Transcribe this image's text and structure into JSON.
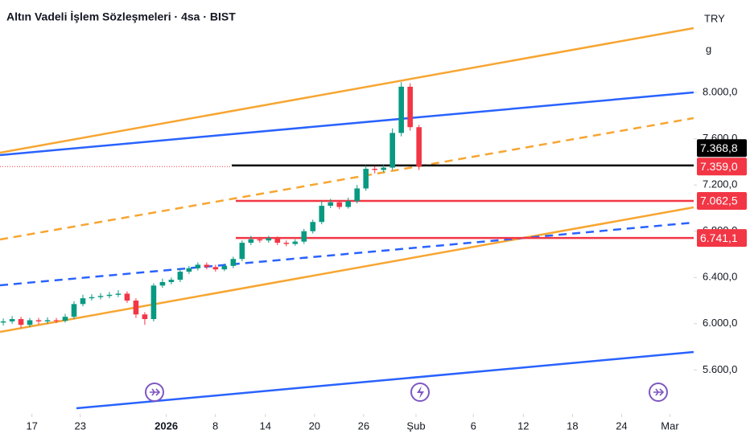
{
  "chart_data": {
    "type": "candlestick",
    "title": "Altın Vadeli İşlem Sözleşmeleri · 4sa · BIST",
    "currency": "TRY",
    "unit": "g",
    "x": [
      -3.5,
      -2.42,
      -1.34,
      -0.26,
      0.82,
      1.9,
      2.98,
      4.06,
      5.14,
      6.22,
      7.3,
      8.38,
      9.46,
      10.54,
      11.62,
      12.7,
      13.78,
      14.86,
      15.94,
      17.02,
      18.1,
      19.18,
      20.26,
      21.34,
      22.42,
      23.5,
      24.58,
      25.66,
      26.74,
      27.82,
      28.9,
      29.98,
      31.06,
      32.14,
      33.22,
      34.3,
      35.38,
      36.46,
      37.54,
      38.62,
      39.7,
      40.78,
      41.86,
      42.94,
      44.02,
      45.1,
      46.18,
      47.26
    ],
    "open": [
      6010,
      6020,
      6040,
      5990,
      6030,
      6020,
      6030,
      6025,
      6060,
      6170,
      6220,
      6230,
      6240,
      6250,
      6260,
      6200,
      6080,
      6040,
      6330,
      6360,
      6380,
      6450,
      6480,
      6510,
      6490,
      6470,
      6500,
      6560,
      6700,
      6730,
      6720,
      6740,
      6700,
      6690,
      6710,
      6800,
      6880,
      7020,
      7050,
      7010,
      7060,
      7170,
      7340,
      7330,
      7350,
      7650,
      8050,
      7700
    ],
    "high": [
      6045,
      6065,
      6060,
      6050,
      6050,
      6055,
      6050,
      6085,
      6195,
      6250,
      6255,
      6265,
      6275,
      6290,
      6280,
      6220,
      6100,
      6350,
      6390,
      6400,
      6475,
      6500,
      6530,
      6530,
      6510,
      6520,
      6580,
      6720,
      6760,
      6750,
      6760,
      6755,
      6720,
      6730,
      6820,
      6900,
      7060,
      7080,
      7065,
      7090,
      7200,
      7370,
      7360,
      7380,
      7690,
      8090,
      8080,
      7720
    ],
    "low": [
      5985,
      6000,
      5960,
      5970,
      5995,
      6000,
      6005,
      6010,
      6040,
      6150,
      6200,
      6210,
      6220,
      6230,
      6180,
      6050,
      5990,
      6020,
      6310,
      6340,
      6360,
      6430,
      6460,
      6470,
      6450,
      6455,
      6480,
      6540,
      6680,
      6700,
      6700,
      6680,
      6670,
      6675,
      6690,
      6780,
      6860,
      7000,
      6990,
      6995,
      7040,
      7150,
      7300,
      7310,
      7330,
      7620,
      7670,
      7330
    ],
    "close": [
      6020,
      6040,
      5990,
      6030,
      6020,
      6030,
      6025,
      6060,
      6170,
      6220,
      6230,
      6240,
      6250,
      6260,
      6200,
      6080,
      6040,
      6330,
      6360,
      6380,
      6450,
      6480,
      6510,
      6490,
      6470,
      6500,
      6560,
      6700,
      6730,
      6720,
      6740,
      6700,
      6690,
      6710,
      6800,
      6880,
      7020,
      7050,
      7010,
      7060,
      7170,
      7340,
      7330,
      7350,
      7650,
      8050,
      7700,
      7359
    ],
    "up_color": "#089981",
    "down_color": "#f23645",
    "xlim": [
      -3.9,
      80.8
    ],
    "xticks": [
      {
        "value": 0,
        "label": "17"
      },
      {
        "value": 5.9,
        "label": "23"
      },
      {
        "value": 16.4,
        "label": "2026"
      },
      {
        "value": 22.4,
        "label": "8"
      },
      {
        "value": 28.5,
        "label": "14"
      },
      {
        "value": 34.5,
        "label": "20"
      },
      {
        "value": 40.5,
        "label": "26"
      },
      {
        "value": 46.9,
        "label": "Şub"
      },
      {
        "value": 53.9,
        "label": "6"
      },
      {
        "value": 60,
        "label": "12"
      },
      {
        "value": 66,
        "label": "18"
      },
      {
        "value": 72,
        "label": "24"
      },
      {
        "value": 77.9,
        "label": "Mar"
      }
    ],
    "ylim": [
      5220,
      8800
    ],
    "yticks": [
      {
        "value": 5600,
        "label": "5.600,0"
      },
      {
        "value": 6000,
        "label": "6.000,0"
      },
      {
        "value": 6400,
        "label": "6.400,0"
      },
      {
        "value": 6800,
        "label": "6.800,0"
      },
      {
        "value": 7200,
        "label": "7.200,0"
      },
      {
        "value": 7600,
        "label": "7.600,0"
      },
      {
        "value": 8000,
        "label": "8.000,0"
      }
    ],
    "grid": false,
    "price_labels": [
      {
        "value": 7368.8,
        "label": "7.368,8",
        "color": "#000000"
      },
      {
        "value": 7359,
        "label": "7.359,0",
        "color": "#f23645"
      },
      {
        "value": 7062.5,
        "label": "7.062,5",
        "color": "#f23645"
      },
      {
        "value": 6741.1,
        "label": "6.741,1",
        "color": "#f23645"
      }
    ]
  }
}
